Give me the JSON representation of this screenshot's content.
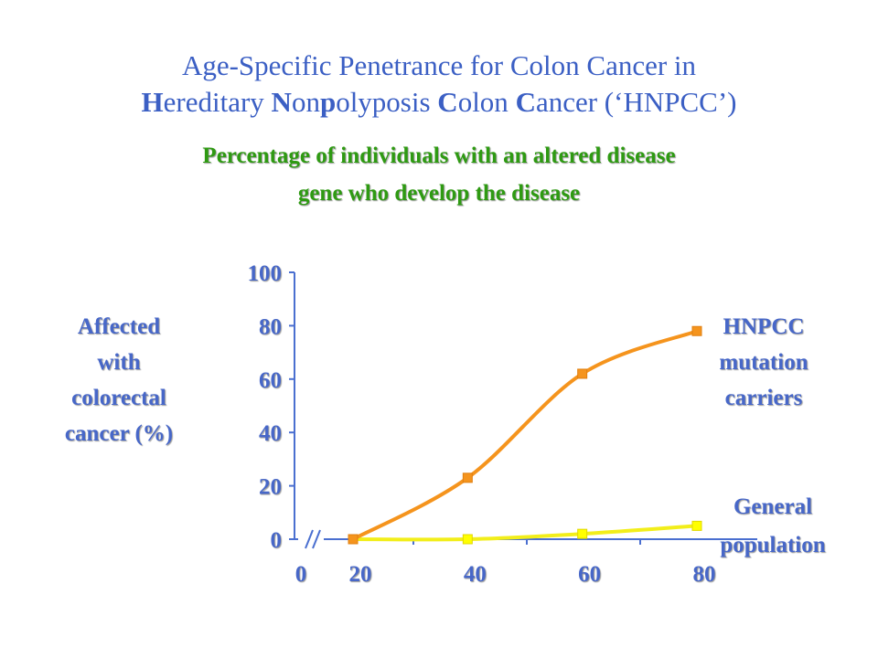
{
  "slide": {
    "title_parts": [
      {
        "text": "Age-Specific Penetrance for Colon Cancer in",
        "bold": false
      }
    ],
    "title_line2": [
      {
        "text": "H",
        "bold": true
      },
      {
        "text": "ereditary ",
        "bold": false
      },
      {
        "text": "N",
        "bold": true
      },
      {
        "text": "on",
        "bold": false
      },
      {
        "text": "p",
        "bold": true
      },
      {
        "text": "olyposis ",
        "bold": false
      },
      {
        "text": "C",
        "bold": true
      },
      {
        "text": "olon ",
        "bold": false
      },
      {
        "text": "C",
        "bold": true
      },
      {
        "text": "ancer (‘HNPCC’)",
        "bold": false
      }
    ],
    "subtitle_line1": "Percentage of individuals with an altered disease",
    "subtitle_line2": "gene who develop the disease"
  },
  "colors": {
    "title": "#3b5fc4",
    "subtitle": "#2e9a12",
    "label": "#4767c8",
    "hnpcc": "#f5941d",
    "general": "#f2ee1a",
    "marker_general": "#ffff00",
    "axis": "#4a6fd0"
  },
  "chart_data": {
    "type": "line",
    "title": "",
    "ylabel_lines": [
      "Affected",
      "with",
      "colorectal",
      "cancer (%)"
    ],
    "xlabel": "",
    "x_ticks": [
      "0",
      "20",
      "40",
      "60",
      "80"
    ],
    "y_ticks": [
      "0",
      "20",
      "40",
      "60",
      "80",
      "100"
    ],
    "xlim": [
      0,
      80
    ],
    "ylim": [
      0,
      100
    ],
    "axis_break": true,
    "series": [
      {
        "name_lines": [
          "HNPCC",
          "mutation",
          "carriers"
        ],
        "color_key": "hnpcc",
        "x": [
          20,
          40,
          60,
          80
        ],
        "y": [
          0,
          23,
          62,
          78
        ]
      },
      {
        "name_lines": [
          "General",
          "population"
        ],
        "color_key": "general",
        "x": [
          20,
          40,
          60,
          80
        ],
        "y": [
          0,
          0,
          2,
          5
        ]
      }
    ]
  }
}
